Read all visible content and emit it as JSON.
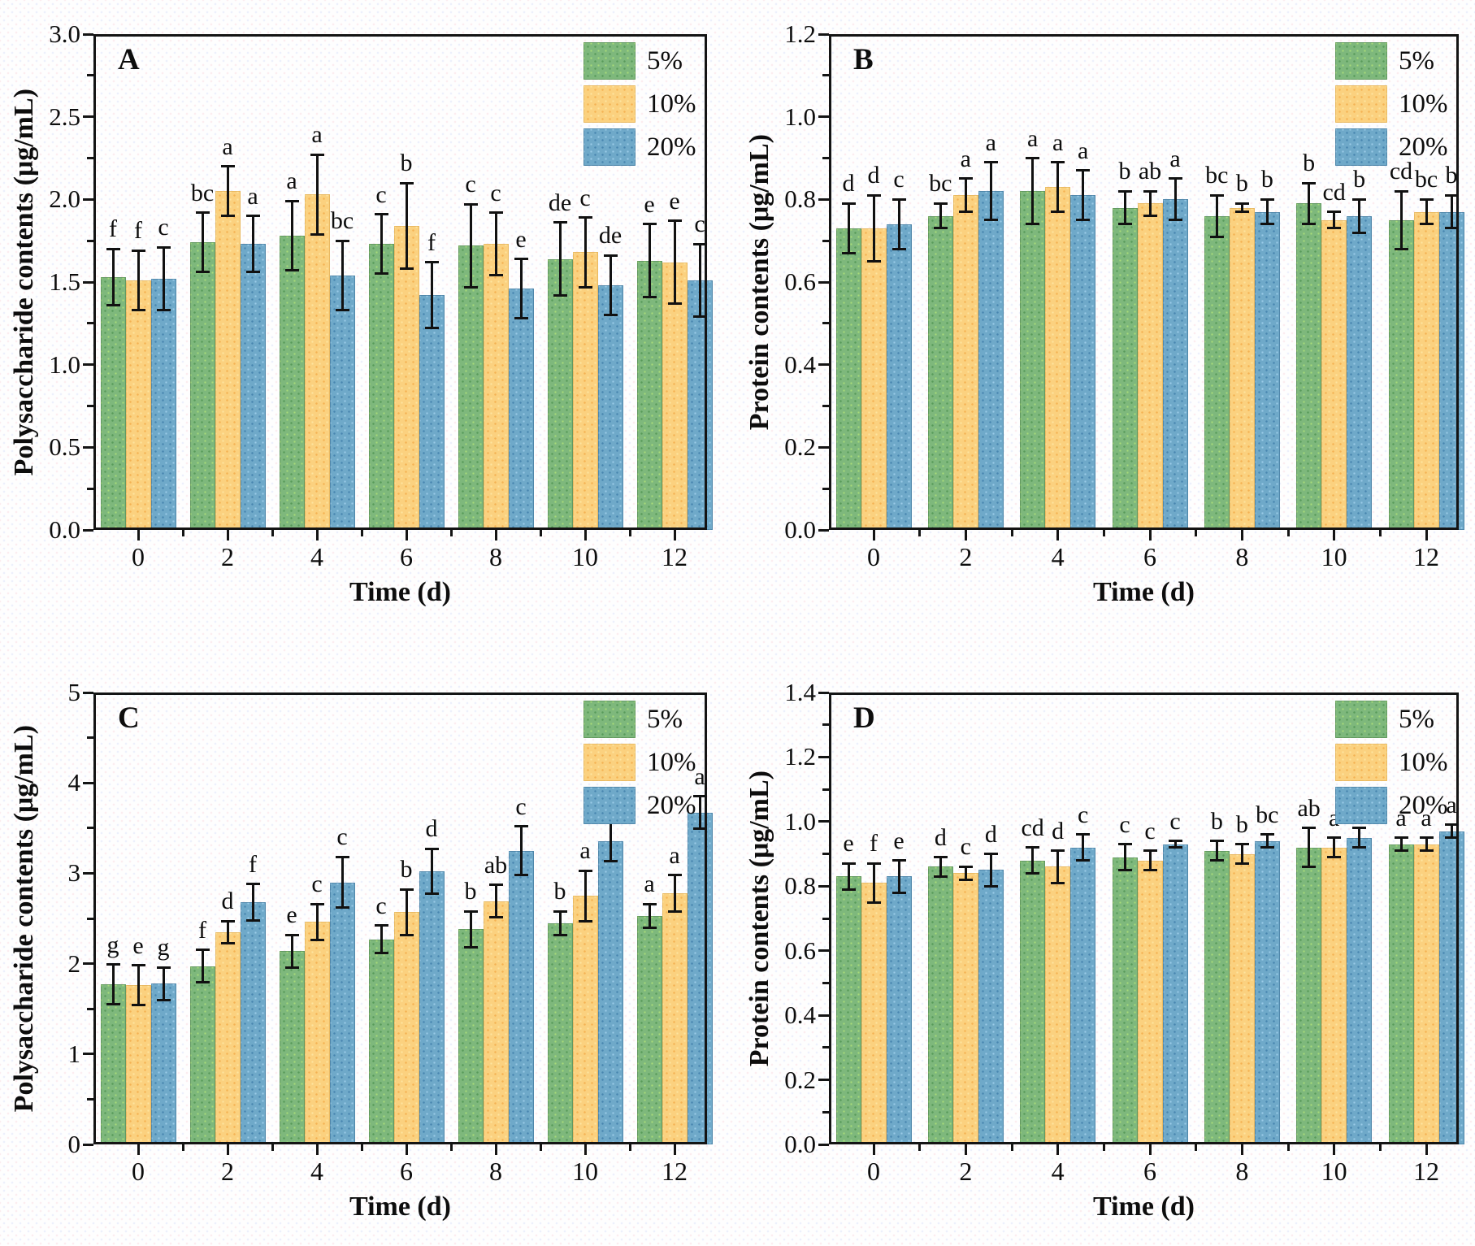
{
  "chart_data": [
    {
      "type": "bar",
      "panel_label": "A",
      "ylabel": "Polysaccharide contents (μg/mL)",
      "xlabel": "Time (d)",
      "ylim": [
        0,
        3.0
      ],
      "ytick_step": 0.5,
      "ytick_decimals": 1,
      "grid": false,
      "legend_position": "top-right",
      "categories": [
        0,
        2,
        4,
        6,
        8,
        10,
        12
      ],
      "series": [
        {
          "name": "5%",
          "color": "#7eb87c",
          "values": [
            1.53,
            1.74,
            1.78,
            1.73,
            1.72,
            1.64,
            1.63
          ],
          "errors": [
            0.17,
            0.18,
            0.21,
            0.18,
            0.25,
            0.22,
            0.22
          ],
          "letters": [
            "f",
            "bc",
            "a",
            "c",
            "c",
            "de",
            "e"
          ]
        },
        {
          "name": "10%",
          "color": "#fbd17f",
          "values": [
            1.51,
            2.05,
            2.03,
            1.84,
            1.73,
            1.68,
            1.62
          ],
          "errors": [
            0.18,
            0.15,
            0.24,
            0.26,
            0.19,
            0.21,
            0.25
          ],
          "letters": [
            "f",
            "a",
            "a",
            "b",
            "c",
            "c",
            "e"
          ]
        },
        {
          "name": "20%",
          "color": "#6fa9c9",
          "values": [
            1.52,
            1.73,
            1.54,
            1.42,
            1.46,
            1.48,
            1.51
          ],
          "errors": [
            0.19,
            0.17,
            0.21,
            0.2,
            0.18,
            0.18,
            0.22
          ],
          "letters": [
            "c",
            "a",
            "bc",
            "f",
            "e",
            "de",
            "c"
          ]
        }
      ]
    },
    {
      "type": "bar",
      "panel_label": "B",
      "ylabel": "Protein contents (μg/mL)",
      "xlabel": "Time (d)",
      "ylim": [
        0,
        1.2
      ],
      "ytick_step": 0.2,
      "ytick_decimals": 1,
      "grid": false,
      "legend_position": "top-right",
      "categories": [
        0,
        2,
        4,
        6,
        8,
        10,
        12
      ],
      "series": [
        {
          "name": "5%",
          "color": "#7eb87c",
          "values": [
            0.73,
            0.76,
            0.82,
            0.78,
            0.76,
            0.79,
            0.75
          ],
          "errors": [
            0.06,
            0.03,
            0.08,
            0.04,
            0.05,
            0.05,
            0.07
          ],
          "letters": [
            "d",
            "bc",
            "a",
            "b",
            "bc",
            "b",
            "cd"
          ]
        },
        {
          "name": "10%",
          "color": "#fbd17f",
          "values": [
            0.73,
            0.81,
            0.83,
            0.79,
            0.78,
            0.75,
            0.77
          ],
          "errors": [
            0.08,
            0.04,
            0.06,
            0.03,
            0.01,
            0.02,
            0.03
          ],
          "letters": [
            "d",
            "a",
            "a",
            "ab",
            "b",
            "cd",
            "bc"
          ]
        },
        {
          "name": "20%",
          "color": "#6fa9c9",
          "values": [
            0.74,
            0.82,
            0.81,
            0.8,
            0.77,
            0.76,
            0.77
          ],
          "errors": [
            0.06,
            0.07,
            0.06,
            0.05,
            0.03,
            0.04,
            0.04
          ],
          "letters": [
            "c",
            "a",
            "a",
            "a",
            "b",
            "b",
            "b"
          ]
        }
      ]
    },
    {
      "type": "bar",
      "panel_label": "C",
      "ylabel": "Polysaccharide contents (μg/mL)",
      "xlabel": "Time (d)",
      "ylim": [
        0,
        5
      ],
      "ytick_step": 1,
      "ytick_decimals": 0,
      "grid": false,
      "legend_position": "top-right",
      "categories": [
        0,
        2,
        4,
        6,
        8,
        10,
        12
      ],
      "series": [
        {
          "name": "5%",
          "color": "#7eb87c",
          "values": [
            1.77,
            1.97,
            2.14,
            2.27,
            2.38,
            2.45,
            2.53
          ],
          "errors": [
            0.22,
            0.18,
            0.18,
            0.15,
            0.2,
            0.13,
            0.13
          ],
          "letters": [
            "g",
            "f",
            "e",
            "c",
            "b",
            "b",
            "a"
          ]
        },
        {
          "name": "10%",
          "color": "#fbd17f",
          "values": [
            1.76,
            2.35,
            2.46,
            2.57,
            2.69,
            2.75,
            2.78
          ],
          "errors": [
            0.22,
            0.12,
            0.2,
            0.25,
            0.18,
            0.28,
            0.2
          ],
          "letters": [
            "e",
            "d",
            "c",
            "b",
            "ab",
            "a",
            "a"
          ]
        },
        {
          "name": "20%",
          "color": "#6fa9c9",
          "values": [
            1.78,
            2.68,
            2.9,
            3.02,
            3.25,
            3.35,
            3.67
          ],
          "errors": [
            0.18,
            0.2,
            0.28,
            0.25,
            0.27,
            0.22,
            0.18
          ],
          "letters": [
            "g",
            "f",
            "c",
            "d",
            "c",
            "bc",
            "a"
          ]
        }
      ]
    },
    {
      "type": "bar",
      "panel_label": "D",
      "ylabel": "Protein contents (μg/mL)",
      "xlabel": "Time (d)",
      "ylim": [
        0,
        1.4
      ],
      "ytick_step": 0.2,
      "ytick_decimals": 1,
      "grid": false,
      "legend_position": "top-right",
      "categories": [
        0,
        2,
        4,
        6,
        8,
        10,
        12
      ],
      "series": [
        {
          "name": "5%",
          "color": "#7eb87c",
          "values": [
            0.83,
            0.86,
            0.88,
            0.89,
            0.91,
            0.92,
            0.93
          ],
          "errors": [
            0.04,
            0.03,
            0.04,
            0.04,
            0.03,
            0.06,
            0.02
          ],
          "letters": [
            "e",
            "d",
            "cd",
            "c",
            "b",
            "ab",
            "a"
          ]
        },
        {
          "name": "10%",
          "color": "#fbd17f",
          "values": [
            0.81,
            0.84,
            0.86,
            0.88,
            0.9,
            0.92,
            0.93
          ],
          "errors": [
            0.06,
            0.02,
            0.05,
            0.03,
            0.03,
            0.03,
            0.02
          ],
          "letters": [
            "f",
            "c",
            "d",
            "c",
            "b",
            "a",
            "a"
          ]
        },
        {
          "name": "20%",
          "color": "#6fa9c9",
          "values": [
            0.83,
            0.85,
            0.92,
            0.93,
            0.94,
            0.95,
            0.97
          ],
          "errors": [
            0.05,
            0.05,
            0.04,
            0.01,
            0.02,
            0.03,
            0.02
          ],
          "letters": [
            "e",
            "d",
            "c",
            "c",
            "bc",
            "b",
            "a"
          ]
        }
      ]
    }
  ],
  "figure": {
    "legend_labels": [
      "5%",
      "10%",
      "20%"
    ],
    "colors": {
      "series_5pct": "#7eb87c",
      "series_10pct": "#fbd17f",
      "series_20pct": "#6fa9c9",
      "axis": "#141414",
      "error_bar": "#111111",
      "background": "#fefefe"
    }
  }
}
